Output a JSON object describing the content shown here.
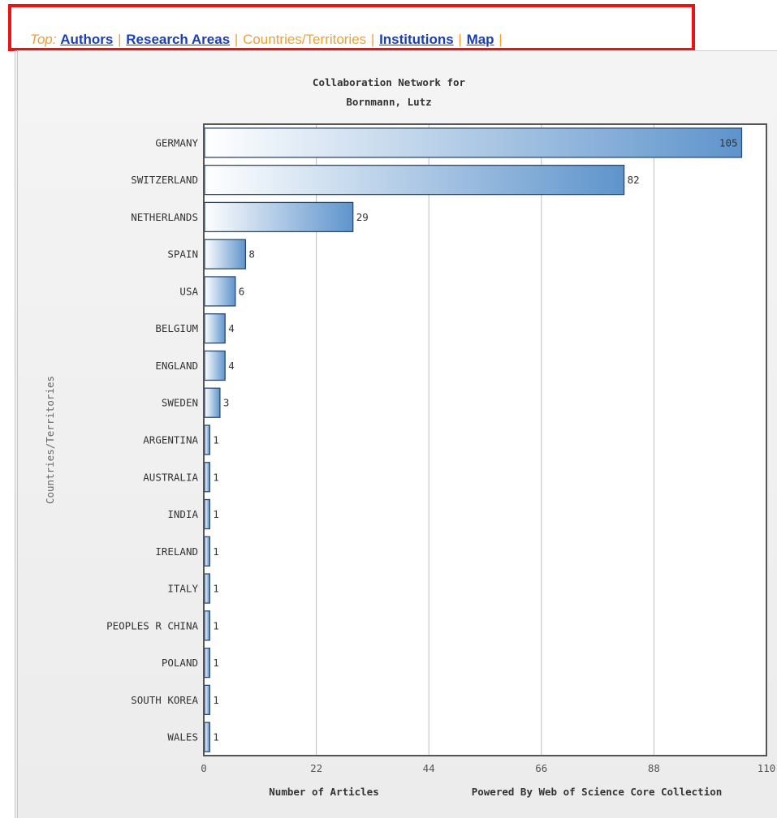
{
  "nav": {
    "prefix": "Top:",
    "items": [
      {
        "label": "Authors",
        "link": true
      },
      {
        "label": "Research Areas",
        "link": true
      },
      {
        "label": "Countries/Territories",
        "link": false
      },
      {
        "label": "Institutions",
        "link": true
      },
      {
        "label": "Map",
        "link": true
      }
    ],
    "separator": "|"
  },
  "chart_data": {
    "type": "bar",
    "orientation": "horizontal",
    "title_lines": [
      "Collaboration Network for",
      "Bornmann, Lutz"
    ],
    "categories": [
      "GERMANY",
      "SWITZERLAND",
      "NETHERLANDS",
      "SPAIN",
      "USA",
      "BELGIUM",
      "ENGLAND",
      "SWEDEN",
      "ARGENTINA",
      "AUSTRALIA",
      "INDIA",
      "IRELAND",
      "ITALY",
      "PEOPLES R CHINA",
      "POLAND",
      "SOUTH KOREA",
      "WALES"
    ],
    "values": [
      105,
      82,
      29,
      8,
      6,
      4,
      4,
      3,
      1,
      1,
      1,
      1,
      1,
      1,
      1,
      1,
      1
    ],
    "xlabel": "Number of Articles",
    "ylabel": "Countries/Territories",
    "xlim": [
      0,
      110
    ],
    "xticks": [
      "0",
      "22",
      "44",
      "66",
      "88",
      "110"
    ],
    "credit": "Powered By Web of Science Core Collection",
    "grid": "vertical",
    "colors": {
      "bar_start": "#ffffff",
      "bar_end": "#5e94cc",
      "bar_stroke": "#2c4a6e",
      "grid": "#bdbdbd",
      "frame": "#555555"
    }
  }
}
